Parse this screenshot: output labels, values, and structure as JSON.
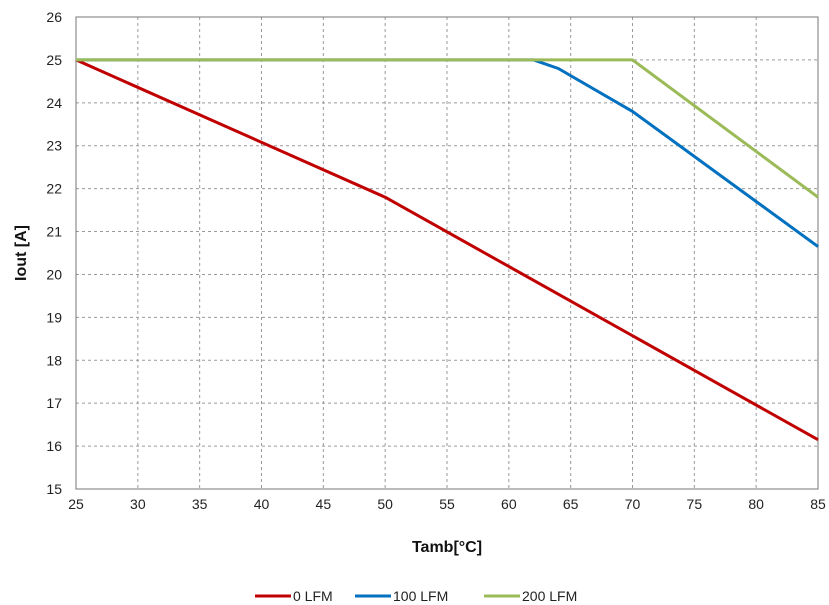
{
  "chart_data": {
    "type": "line",
    "xlabel": "Tamb[°C]",
    "ylabel": "Iout [A]",
    "xlim": [
      25,
      85
    ],
    "ylim": [
      15,
      26
    ],
    "x_ticks": [
      25,
      30,
      35,
      40,
      45,
      50,
      55,
      60,
      65,
      70,
      75,
      80,
      85
    ],
    "y_ticks": [
      15,
      16,
      17,
      18,
      19,
      20,
      21,
      22,
      23,
      24,
      25,
      26
    ],
    "grid": true,
    "legend_position": "bottom",
    "series": [
      {
        "name": "0 LFM",
        "color": "#c00000",
        "points": [
          [
            25,
            25.0
          ],
          [
            50,
            21.8
          ],
          [
            85,
            16.15
          ]
        ]
      },
      {
        "name": "100 LFM",
        "color": "#0070c0",
        "points": [
          [
            25,
            25.0
          ],
          [
            62,
            25.0
          ],
          [
            64,
            24.8
          ],
          [
            70,
            23.8
          ],
          [
            85,
            20.65
          ]
        ]
      },
      {
        "name": "200 LFM",
        "color": "#9bbb59",
        "points": [
          [
            25,
            25.0
          ],
          [
            70,
            25.0
          ],
          [
            85,
            21.8
          ]
        ]
      }
    ]
  }
}
